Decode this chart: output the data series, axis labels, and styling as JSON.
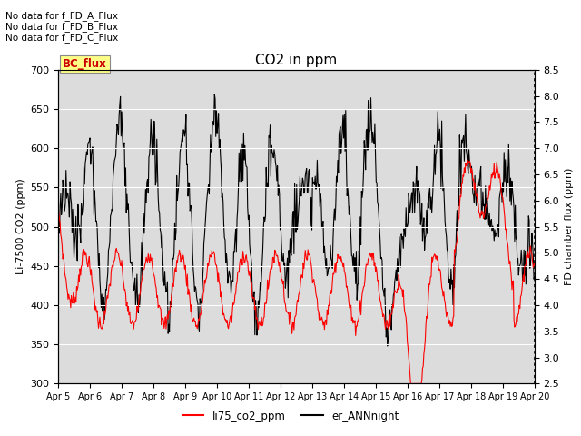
{
  "title": "CO2 in ppm",
  "ylabel_left": "Li-7500 CO2 (ppm)",
  "ylabel_right": "FD chamber flux (ppm)",
  "ylim_left": [
    300,
    700
  ],
  "ylim_right": [
    2.5,
    8.5
  ],
  "yticks_left": [
    300,
    350,
    400,
    450,
    500,
    550,
    600,
    650,
    700
  ],
  "yticks_right": [
    2.5,
    3.0,
    3.5,
    4.0,
    4.5,
    5.0,
    5.5,
    6.0,
    6.5,
    7.0,
    7.5,
    8.0,
    8.5
  ],
  "xlabels": [
    "Apr 5",
    "Apr 6",
    "Apr 7",
    "Apr 8",
    "Apr 9",
    "Apr 10",
    "Apr 11",
    "Apr 12",
    "Apr 13",
    "Apr 14",
    "Apr 15",
    "Apr 16",
    "Apr 17",
    "Apr 18",
    "Apr 19",
    "Apr 20"
  ],
  "no_data_texts": [
    "No data for f_FD_A_Flux",
    "No data for f_FD_B_Flux",
    "No data for f_FD_C_Flux"
  ],
  "legend_bc_label": "BC_flux",
  "legend_line1_label": "li75_co2_ppm",
  "legend_line2_label": "er_ANNnight",
  "line1_color": "#ff0000",
  "line2_color": "#000000",
  "plot_bg_color": "#dcdcdc",
  "fig_width": 6.4,
  "fig_height": 4.8,
  "dpi": 100
}
